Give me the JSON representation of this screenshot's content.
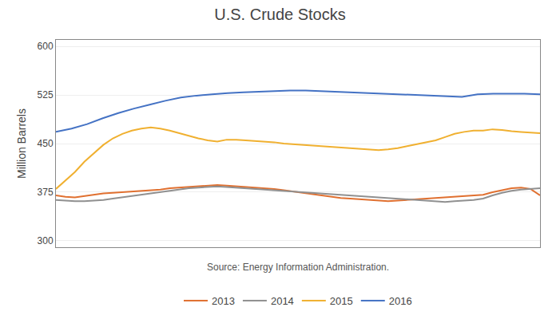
{
  "chart_data": {
    "type": "line",
    "title": "U.S. Crude Stocks",
    "y_label": "Million Barrels",
    "annotations": [
      "Source: Energy Information Administration."
    ],
    "xlim": [
      0,
      51
    ],
    "ylim": [
      290,
      610
    ],
    "yticks": [
      300,
      375,
      450,
      525,
      600
    ],
    "tick_labels": "y",
    "grid": true,
    "legend": "bottom",
    "series": [
      {
        "name": "2013",
        "color": "#e07030",
        "x": [
          0,
          1,
          2,
          3,
          4,
          5,
          6,
          7,
          8,
          9,
          10,
          11,
          12,
          13,
          14,
          15,
          16,
          17,
          18,
          19,
          20,
          21,
          22,
          23,
          24,
          25,
          26,
          27,
          28,
          29,
          30,
          31,
          32,
          33,
          34,
          35,
          36,
          37,
          38,
          39,
          40,
          41,
          42,
          43,
          44,
          45,
          46,
          47,
          48,
          49,
          50,
          51
        ],
        "values": [
          370,
          368,
          367,
          369,
          371,
          373,
          374,
          375,
          376,
          377,
          378,
          379,
          381,
          382,
          383,
          384,
          385,
          386,
          385,
          384,
          383,
          382,
          381,
          380,
          378,
          376,
          374,
          372,
          370,
          368,
          366,
          365,
          364,
          363,
          362,
          361,
          362,
          363,
          364,
          365,
          366,
          367,
          368,
          369,
          370,
          371,
          375,
          378,
          381,
          382,
          380,
          370
        ]
      },
      {
        "name": "2014",
        "color": "#909090",
        "x": [
          0,
          1,
          2,
          3,
          4,
          5,
          6,
          7,
          8,
          9,
          10,
          11,
          12,
          13,
          14,
          15,
          16,
          17,
          18,
          19,
          20,
          21,
          22,
          23,
          24,
          25,
          26,
          27,
          28,
          29,
          30,
          31,
          32,
          33,
          34,
          35,
          36,
          37,
          38,
          39,
          40,
          41,
          42,
          43,
          44,
          45,
          46,
          47,
          48,
          49,
          50,
          51
        ],
        "values": [
          363,
          362,
          361,
          361,
          362,
          363,
          365,
          367,
          369,
          371,
          373,
          375,
          377,
          379,
          381,
          382,
          383,
          384,
          383,
          382,
          381,
          380,
          379,
          378,
          377,
          376,
          375,
          374,
          373,
          372,
          371,
          370,
          369,
          368,
          367,
          366,
          365,
          364,
          363,
          362,
          361,
          360,
          361,
          362,
          363,
          365,
          370,
          374,
          377,
          379,
          380,
          381
        ]
      },
      {
        "name": "2015",
        "color": "#f0b030",
        "x": [
          0,
          1,
          2,
          3,
          4,
          5,
          6,
          7,
          8,
          9,
          10,
          11,
          12,
          13,
          14,
          15,
          16,
          17,
          18,
          19,
          20,
          21,
          22,
          23,
          24,
          25,
          26,
          27,
          28,
          29,
          30,
          31,
          32,
          33,
          34,
          35,
          36,
          37,
          38,
          39,
          40,
          41,
          42,
          43,
          44,
          45,
          46,
          47,
          48,
          49,
          50,
          51
        ],
        "values": [
          380,
          393,
          406,
          422,
          435,
          448,
          458,
          465,
          470,
          473,
          475,
          473,
          470,
          466,
          462,
          458,
          455,
          453,
          456,
          456,
          455,
          454,
          453,
          452,
          450,
          449,
          448,
          447,
          446,
          445,
          444,
          443,
          442,
          441,
          440,
          441,
          443,
          446,
          449,
          452,
          455,
          460,
          465,
          468,
          470,
          470,
          472,
          471,
          469,
          468,
          467,
          466
        ]
      },
      {
        "name": "2016",
        "color": "#4472c4",
        "x": [
          0,
          1.6451612903225807,
          3.2903225806451615,
          4.935483870967742,
          6.580645161290323,
          8.225806451612904,
          9.870967741935484,
          11.516129032258064,
          13.161290322580646,
          14.806451612903226,
          16.451612903225808,
          18.096774193548388,
          19.741935483870968,
          21.387096774193548,
          23.032258064516128,
          24.677419354838708,
          26.322580645161292,
          27.967741935483872,
          29.612903225806452,
          31.258064516129032,
          32.903225806451616,
          34.54838709677419,
          36.193548387096776,
          37.83870967741935,
          39.483870967741936,
          41.12903225806452,
          42.774193548387096,
          44.41935483870968,
          46.064516129032256,
          47.70967741935484,
          49.354838709677416,
          51
        ],
        "values": [
          468,
          473,
          480,
          489,
          497,
          504,
          510,
          516,
          521,
          524,
          526,
          528,
          529,
          530,
          531,
          532,
          532,
          531,
          530,
          529,
          528,
          527,
          526,
          525,
          524,
          523,
          522,
          526,
          527,
          527,
          527,
          526
        ]
      }
    ]
  }
}
